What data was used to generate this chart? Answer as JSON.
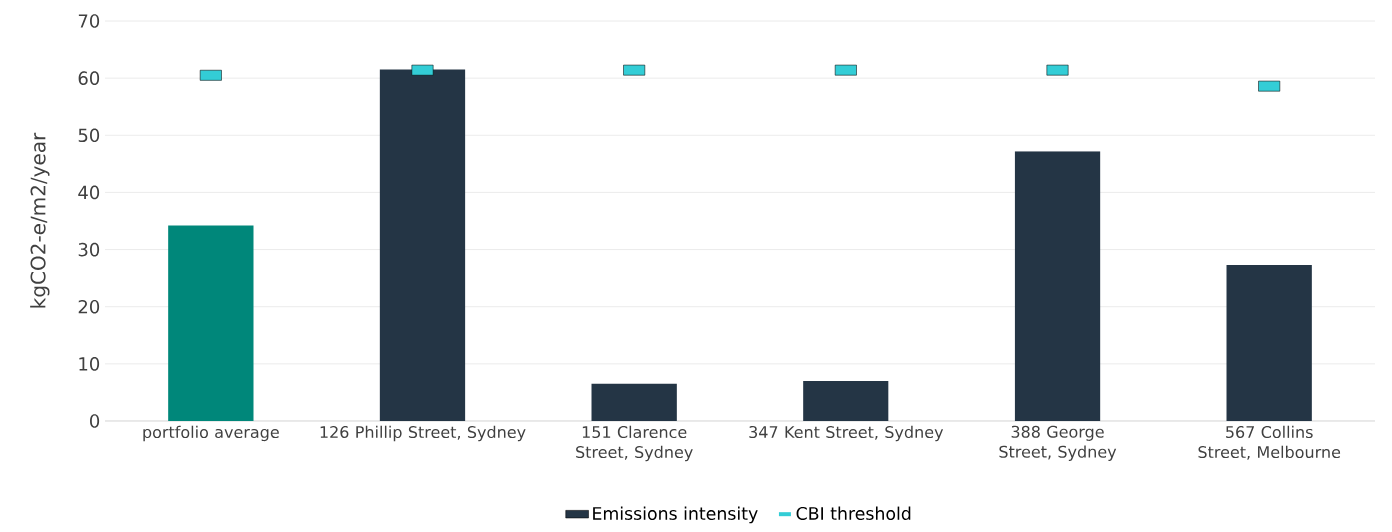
{
  "chart_data": {
    "type": "bar",
    "ylabel": "kgCO2-e/m2/year",
    "categories": [
      "portfolio average",
      "126 Phillip Street, Sydney",
      "151 Clarence Street, Sydney",
      "347 Kent Street, Sydney",
      "388 George Street, Sydney",
      "567 Collins Street, Melbourne"
    ],
    "series": [
      {
        "name": "Emissions intensity",
        "type": "bar",
        "color": "#243545",
        "colors": [
          "#00877a",
          "#243545",
          "#243545",
          "#243545",
          "#243545",
          "#243545"
        ],
        "values": [
          34.2,
          61.5,
          6.5,
          7.0,
          47.2,
          27.3
        ]
      },
      {
        "name": "CBI threshold",
        "type": "scatter",
        "color": "#33cdd6",
        "values": [
          60.5,
          61.4,
          61.4,
          61.4,
          61.4,
          58.6
        ]
      }
    ],
    "ylim": [
      0,
      70
    ],
    "yticks": [
      0,
      10,
      20,
      30,
      40,
      50,
      60,
      70
    ],
    "grid": "y",
    "legend": "bottom"
  }
}
